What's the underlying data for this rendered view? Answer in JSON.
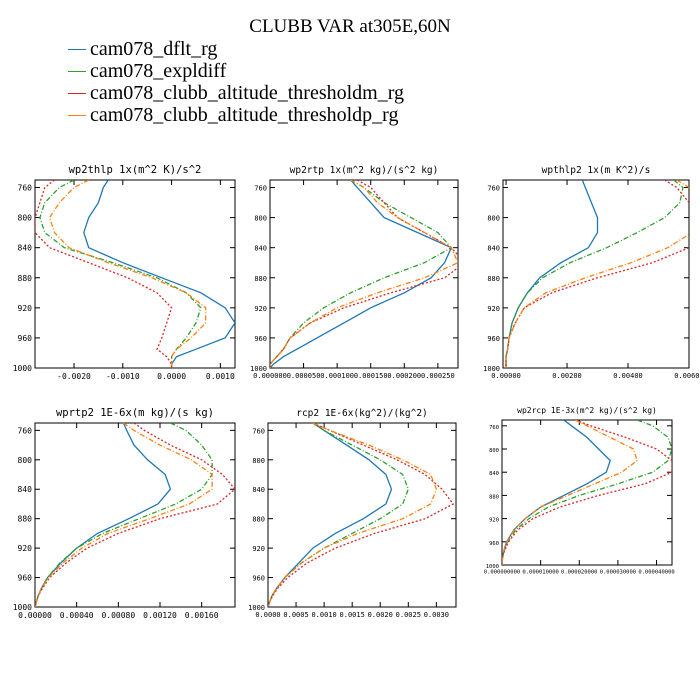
{
  "title": "CLUBB VAR at305E,60N",
  "colors": {
    "dflt": "#1f77b4",
    "expldiff": "#2ca02c",
    "thresholdm": "#d62728",
    "thresholdp": "#ff7f0e"
  },
  "legend": [
    {
      "label": "cam078_dflt_rg",
      "color": "#1f77b4",
      "dash": "solid"
    },
    {
      "label": "cam078_expldiff",
      "color": "#2ca02c",
      "dash": "dashdot"
    },
    {
      "label": "cam078_clubb_altitude_thresholdm_rg",
      "color": "#d62728",
      "dash": "dotted"
    },
    {
      "label": "cam078_clubb_altitude_thresholdp_rg",
      "color": "#ff7f0e",
      "dash": "dashdot"
    }
  ],
  "chart_data": [
    {
      "type": "line",
      "title": "wp2thlp  1x(m^2 K)/s^2",
      "xlim": [
        -0.0028,
        0.0013
      ],
      "ylim": [
        1000,
        750
      ],
      "xticks": [
        -0.002,
        -0.001,
        0.0,
        0.001
      ],
      "xtick_labels": [
        "-0.0020",
        "-0.0010",
        "0.0000",
        "0.0010"
      ],
      "yticks": [
        760,
        800,
        840,
        880,
        920,
        960,
        1000
      ],
      "y": [
        750,
        760,
        780,
        800,
        820,
        840,
        860,
        880,
        900,
        920,
        940,
        960,
        975,
        985,
        995,
        1000
      ],
      "series": [
        {
          "name": "cam078_dflt_rg",
          "color": "#1f77b4",
          "dash": "solid",
          "values": [
            -0.0013,
            -0.0014,
            -0.0015,
            -0.0017,
            -0.0018,
            -0.0017,
            -0.001,
            -0.0002,
            0.0006,
            0.0011,
            0.0013,
            0.0011,
            0.0005,
            0.0001,
            0.0,
            0.0
          ]
        },
        {
          "name": "cam078_expldiff",
          "color": "#2ca02c",
          "dash": "dashdot",
          "values": [
            -0.002,
            -0.0023,
            -0.0026,
            -0.0027,
            -0.0026,
            -0.0022,
            -0.0012,
            -0.0003,
            0.0003,
            0.0006,
            0.0005,
            0.0003,
            0.0001,
            0.0,
            0.0,
            0.0
          ]
        },
        {
          "name": "cam078_clubb_altitude_thresholdm_rg",
          "color": "#d62728",
          "dash": "dotted",
          "values": [
            -0.0024,
            -0.0026,
            -0.0027,
            -0.0028,
            -0.0028,
            -0.0025,
            -0.0017,
            -0.0009,
            -0.0003,
            0.0,
            -0.0001,
            -0.0002,
            -0.0003,
            -0.0001,
            0.0,
            0.0
          ]
        },
        {
          "name": "cam078_clubb_altitude_thresholdp_rg",
          "color": "#ff7f0e",
          "dash": "dashdot",
          "values": [
            -0.0017,
            -0.002,
            -0.0023,
            -0.0025,
            -0.0024,
            -0.0021,
            -0.0013,
            -0.0004,
            0.0003,
            0.0007,
            0.0007,
            0.0004,
            0.0001,
            0.0,
            0.0,
            0.0
          ]
        }
      ]
    },
    {
      "type": "line",
      "title": "wp2rtp  1x(m^2 kg)/(s^2 kg)",
      "xlim": [
        0.0,
        0.00028
      ],
      "ylim": [
        1000,
        750
      ],
      "xticks": [
        0.0,
        5e-05,
        0.0001,
        0.00015,
        0.0002,
        0.00025
      ],
      "xtick_labels": [
        "0.000000",
        "0.000050",
        "0.000100",
        "0.000150",
        "0.000200",
        "0.000250"
      ],
      "yticks": [
        760,
        800,
        840,
        880,
        920,
        960,
        1000
      ],
      "y": [
        750,
        760,
        780,
        800,
        820,
        840,
        860,
        880,
        900,
        920,
        940,
        960,
        975,
        985,
        995,
        1000
      ],
      "series": [
        {
          "name": "cam078_dflt_rg",
          "color": "#1f77b4",
          "dash": "solid",
          "values": [
            0.00012,
            0.00013,
            0.00015,
            0.00017,
            0.00022,
            0.00027,
            0.00026,
            0.00024,
            0.0002,
            0.00015,
            0.00011,
            7e-05,
            4e-05,
            2e-05,
            5e-06,
            0.0
          ]
        },
        {
          "name": "cam078_expldiff",
          "color": "#2ca02c",
          "dash": "dashdot",
          "values": [
            0.00012,
            0.00014,
            0.00017,
            0.00021,
            0.00025,
            0.00027,
            0.00023,
            0.00017,
            0.00012,
            8e-05,
            5e-05,
            3e-05,
            2e-05,
            1e-05,
            0.0,
            0.0
          ]
        },
        {
          "name": "cam078_clubb_altitude_thresholdm_rg",
          "color": "#d62728",
          "dash": "dotted",
          "values": [
            0.00013,
            0.00015,
            0.00017,
            0.00019,
            0.00023,
            0.00027,
            0.00029,
            0.00026,
            0.00018,
            0.00011,
            6e-05,
            3e-05,
            2e-05,
            1e-05,
            0.0,
            0.0
          ]
        },
        {
          "name": "cam078_clubb_altitude_thresholdp_rg",
          "color": "#ff7f0e",
          "dash": "dashdot",
          "values": [
            0.00012,
            0.00014,
            0.00016,
            0.00019,
            0.00023,
            0.00027,
            0.00028,
            0.00023,
            0.00016,
            0.0001,
            6e-05,
            3e-05,
            2e-05,
            1e-05,
            0.0,
            0.0
          ]
        }
      ]
    },
    {
      "type": "line",
      "title": "wpthlp2  1x(m K^2)/s",
      "xlim": [
        -0.0001,
        0.006
      ],
      "ylim": [
        1000,
        750
      ],
      "xticks": [
        0.0,
        0.002,
        0.004,
        0.006
      ],
      "xtick_labels": [
        "0.00000",
        "0.00200",
        "0.00400",
        "0.00600"
      ],
      "yticks": [
        760,
        800,
        840,
        880,
        920,
        960,
        1000
      ],
      "y": [
        750,
        760,
        780,
        800,
        820,
        840,
        860,
        880,
        900,
        920,
        940,
        960,
        975,
        985,
        995,
        1000
      ],
      "series": [
        {
          "name": "cam078_dflt_rg",
          "color": "#1f77b4",
          "dash": "solid",
          "values": [
            0.0025,
            0.0026,
            0.0028,
            0.003,
            0.003,
            0.0027,
            0.0018,
            0.0011,
            0.0007,
            0.0004,
            0.0002,
            0.0001,
            5e-05,
            0.0,
            0.0,
            0.0
          ]
        },
        {
          "name": "cam078_expldiff",
          "color": "#2ca02c",
          "dash": "dashdot",
          "values": [
            0.0055,
            0.0058,
            0.0057,
            0.0052,
            0.0043,
            0.0033,
            0.0021,
            0.0012,
            0.0007,
            0.0004,
            0.0002,
            0.0001,
            5e-05,
            0.0,
            0.0,
            0.0
          ]
        },
        {
          "name": "cam078_clubb_altitude_thresholdm_rg",
          "color": "#d62728",
          "dash": "dotted",
          "values": [
            0.0052,
            0.0056,
            0.006,
            0.0063,
            0.0063,
            0.006,
            0.0048,
            0.003,
            0.0015,
            0.0006,
            0.0003,
            0.0001,
            5e-05,
            0.0,
            0.0,
            0.0
          ]
        },
        {
          "name": "cam078_clubb_altitude_thresholdp_rg",
          "color": "#ff7f0e",
          "dash": "dashdot",
          "values": [
            0.0056,
            0.006,
            0.0063,
            0.0063,
            0.0061,
            0.0053,
            0.0041,
            0.0026,
            0.0013,
            0.0006,
            0.0003,
            0.0001,
            5e-05,
            0.0,
            0.0,
            0.0
          ]
        }
      ]
    },
    {
      "type": "line",
      "title": "wprtp2  1E-6x(m kg)/(s kg)",
      "xlim": [
        0.0,
        0.00192
      ],
      "ylim": [
        1000,
        750
      ],
      "xticks": [
        0.0,
        0.0004,
        0.0008,
        0.0012,
        0.0016
      ],
      "xtick_labels": [
        "0.00000",
        "0.00040",
        "0.00080",
        "0.00120",
        "0.00160"
      ],
      "yticks": [
        760,
        800,
        840,
        880,
        920,
        960,
        1000
      ],
      "y": [
        750,
        760,
        780,
        800,
        820,
        840,
        860,
        880,
        900,
        920,
        940,
        960,
        975,
        985,
        995,
        1000
      ],
      "series": [
        {
          "name": "cam078_dflt_rg",
          "color": "#1f77b4",
          "dash": "solid",
          "values": [
            0.00085,
            0.00088,
            0.00095,
            0.00108,
            0.00125,
            0.0013,
            0.00118,
            0.0009,
            0.0006,
            0.0004,
            0.00025,
            0.00012,
            6e-05,
            3e-05,
            1e-05,
            0.0
          ]
        },
        {
          "name": "cam078_expldiff",
          "color": "#2ca02c",
          "dash": "dashdot",
          "values": [
            0.0013,
            0.00145,
            0.0016,
            0.0017,
            0.0017,
            0.0016,
            0.00135,
            0.001,
            0.00065,
            0.0004,
            0.00024,
            0.00012,
            6e-05,
            3e-05,
            1e-05,
            0.0
          ]
        },
        {
          "name": "cam078_clubb_altitude_thresholdm_rg",
          "color": "#d62728",
          "dash": "dotted",
          "values": [
            0.00095,
            0.00105,
            0.0013,
            0.0016,
            0.0018,
            0.00192,
            0.00175,
            0.0012,
            0.0008,
            0.0005,
            0.0003,
            0.00014,
            7e-05,
            3e-05,
            1e-05,
            0.0
          ]
        },
        {
          "name": "cam078_clubb_altitude_thresholdp_rg",
          "color": "#ff7f0e",
          "dash": "dashdot",
          "values": [
            0.00085,
            0.00095,
            0.0012,
            0.0015,
            0.0017,
            0.0017,
            0.00148,
            0.0011,
            0.0007,
            0.00045,
            0.00027,
            0.00013,
            6e-05,
            3e-05,
            1e-05,
            0.0
          ]
        }
      ]
    },
    {
      "type": "line",
      "title": "rcp2  1E-6x(kg^2)/(kg^2)",
      "xlim": [
        0.0,
        0.00335
      ],
      "ylim": [
        1000,
        750
      ],
      "xticks": [
        0.0,
        0.0005,
        0.001,
        0.0015,
        0.002,
        0.0025,
        0.003
      ],
      "xtick_labels": [
        "0.0000",
        "0.0005",
        "0.0010",
        "0.0015",
        "0.0020",
        "0.0025",
        "0.0030"
      ],
      "yticks": [
        760,
        800,
        840,
        880,
        920,
        960,
        1000
      ],
      "y": [
        750,
        760,
        780,
        800,
        820,
        840,
        860,
        880,
        900,
        920,
        940,
        960,
        975,
        985,
        995,
        1000
      ],
      "series": [
        {
          "name": "cam078_dflt_rg",
          "color": "#1f77b4",
          "dash": "solid",
          "values": [
            0.0008,
            0.001,
            0.0014,
            0.0018,
            0.0021,
            0.0022,
            0.0021,
            0.0017,
            0.0012,
            0.0008,
            0.00055,
            0.0003,
            0.00015,
            7e-05,
            2e-05,
            0.0
          ]
        },
        {
          "name": "cam078_expldiff",
          "color": "#2ca02c",
          "dash": "dashdot",
          "values": [
            0.0008,
            0.001,
            0.0015,
            0.002,
            0.0024,
            0.0025,
            0.0024,
            0.002,
            0.0015,
            0.001,
            0.0006,
            0.0003,
            0.00015,
            7e-05,
            2e-05,
            0.0
          ]
        },
        {
          "name": "cam078_clubb_altitude_thresholdm_rg",
          "color": "#d62728",
          "dash": "dotted",
          "values": [
            0.0008,
            0.0011,
            0.0017,
            0.0023,
            0.0028,
            0.0031,
            0.0033,
            0.0028,
            0.0019,
            0.0012,
            0.0007,
            0.00035,
            0.00017,
            8e-05,
            2e-05,
            0.0
          ]
        },
        {
          "name": "cam078_clubb_altitude_thresholdp_rg",
          "color": "#ff7f0e",
          "dash": "dashdot",
          "values": [
            0.0008,
            0.0011,
            0.0018,
            0.0024,
            0.0029,
            0.003,
            0.0029,
            0.0024,
            0.0016,
            0.001,
            0.0006,
            0.0003,
            0.00015,
            7e-05,
            2e-05,
            0.0
          ]
        }
      ]
    },
    {
      "type": "line",
      "title": "wp2rcp  1E-3x(m^2 kg)/(s^2 kg)",
      "xlim": [
        0.0,
        4.4e-05
      ],
      "ylim": [
        1000,
        750
      ],
      "xticks": [
        0.0,
        1e-05,
        2e-05,
        3e-05,
        4e-05
      ],
      "xtick_labels": [
        "0.000000000",
        "0.000010000",
        "0.000020000",
        "0.000030000",
        "0.000040000"
      ],
      "yticks": [
        760,
        800,
        840,
        880,
        920,
        960,
        1000
      ],
      "y": [
        750,
        760,
        780,
        800,
        820,
        840,
        860,
        880,
        900,
        920,
        940,
        960,
        975,
        985,
        995,
        1000
      ],
      "series": [
        {
          "name": "cam078_dflt_rg",
          "color": "#1f77b4",
          "dash": "solid",
          "values": [
            1.6e-05,
            1.8e-05,
            2.2e-05,
            2.5e-05,
            2.8e-05,
            2.7e-05,
            2.2e-05,
            1.6e-05,
            1e-05,
            6e-06,
            3e-06,
            1.2e-06,
            5e-07,
            2e-07,
            0.0,
            0.0
          ]
        },
        {
          "name": "cam078_expldiff",
          "color": "#2ca02c",
          "dash": "dashdot",
          "values": [
            3.5e-05,
            3.9e-05,
            4.3e-05,
            4.4e-05,
            4.3e-05,
            3.9e-05,
            3e-05,
            2e-05,
            1.2e-05,
            7e-06,
            3.5e-06,
            1.5e-06,
            6e-07,
            2e-07,
            0.0,
            0.0
          ]
        },
        {
          "name": "cam078_clubb_altitude_thresholdm_rg",
          "color": "#d62728",
          "dash": "dotted",
          "values": [
            1.9e-05,
            2.3e-05,
            3.2e-05,
            4e-05,
            4.4e-05,
            4.4e-05,
            3.7e-05,
            2.5e-05,
            1.5e-05,
            8e-06,
            4e-06,
            1.7e-06,
            7e-07,
            2e-07,
            0.0,
            0.0
          ]
        },
        {
          "name": "cam078_clubb_altitude_thresholdp_rg",
          "color": "#ff7f0e",
          "dash": "dashdot",
          "values": [
            1.9e-05,
            2.2e-05,
            2.8e-05,
            3.4e-05,
            3.5e-05,
            3.1e-05,
            2.4e-05,
            1.7e-05,
            1e-05,
            6e-06,
            3e-06,
            1.3e-06,
            5e-07,
            2e-07,
            0.0,
            0.0
          ]
        }
      ]
    }
  ]
}
